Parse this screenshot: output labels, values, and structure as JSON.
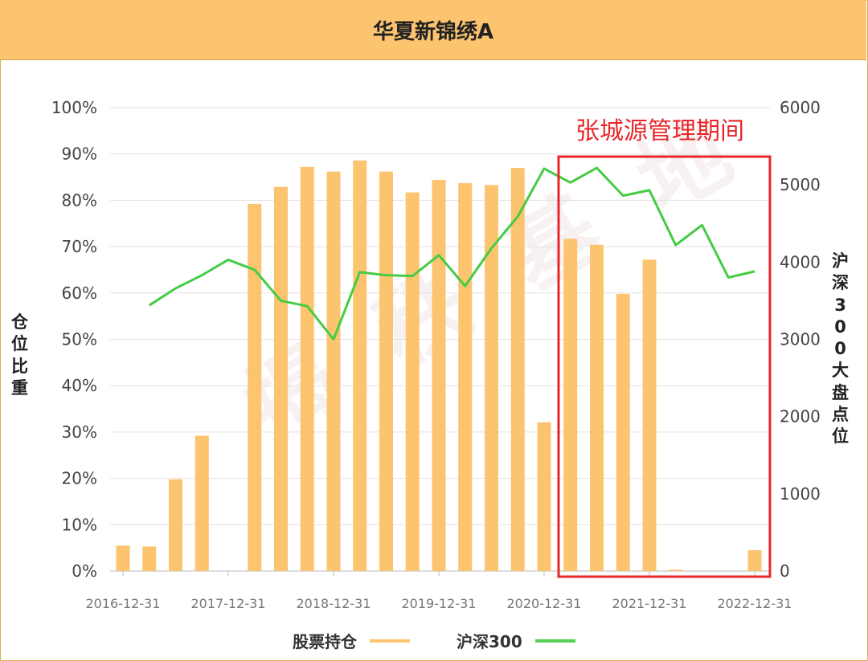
{
  "title": "华夏新锦绣A",
  "left_axis_label": [
    "仓",
    "位",
    "比",
    "重"
  ],
  "right_axis_label": [
    "沪",
    "深",
    "3",
    "0",
    "0",
    "大",
    "盘",
    "点",
    "位"
  ],
  "annotation": "张城源管理期间",
  "watermark": "揭 秩 基 地",
  "legend": {
    "items": [
      {
        "label": "股票持仓",
        "color": "#fdc470"
      },
      {
        "label": "沪深300",
        "color": "#55d255"
      }
    ]
  },
  "colors": {
    "bar": "#fdc470",
    "line": "#44cc44",
    "annotation": "#e8262a",
    "header": "#fdc470"
  },
  "chart_data": {
    "type": "bar+line",
    "title": "华夏新锦绣A",
    "y_left": {
      "label": "仓位比重",
      "ylim": [
        0,
        100
      ],
      "ticks": [
        "0%",
        "10%",
        "20%",
        "30%",
        "40%",
        "50%",
        "60%",
        "70%",
        "80%",
        "90%",
        "100%"
      ]
    },
    "y_right": {
      "label": "沪深300大盘点位",
      "ylim": [
        0,
        6000
      ],
      "ticks": [
        "0",
        "1000",
        "2000",
        "3000",
        "4000",
        "5000",
        "6000"
      ]
    },
    "x_ticks": [
      "2016-12-31",
      "2017-12-31",
      "2018-12-31",
      "2019-12-31",
      "2020-12-31",
      "2021-12-31",
      "2022-12-31"
    ],
    "series": [
      {
        "name": "股票持仓",
        "type": "bar",
        "values": [
          5.5,
          5.3,
          19.8,
          29.2,
          0,
          79.2,
          82.9,
          87.2,
          86.2,
          88.6,
          86.2,
          81.7,
          84.4,
          83.7,
          83.3,
          87.0,
          32.1,
          71.7,
          70.4,
          59.8,
          67.2,
          0.3,
          0,
          0,
          4.5
        ]
      },
      {
        "name": "沪深300",
        "type": "line",
        "values": [
          null,
          3440,
          3660,
          3830,
          4030,
          3900,
          3500,
          3430,
          3000,
          3870,
          3830,
          3820,
          4090,
          3690,
          4180,
          4590,
          5210,
          5030,
          5220,
          4860,
          4930,
          4220,
          4480,
          3800,
          3880
        ]
      }
    ],
    "grid": true,
    "legend_position": "bottom"
  }
}
